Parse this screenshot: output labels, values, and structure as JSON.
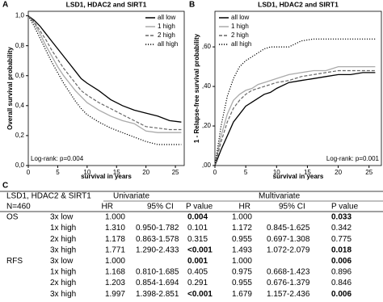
{
  "chart_data": [
    {
      "type": "line",
      "panel": "A",
      "title": "LSD1, HDAC2 and SIRT1",
      "x_label": "survival in years",
      "y_label": "Overall survival probability",
      "annotation": "Log-rank: p=0.004",
      "legend": "upper right",
      "x": [
        0,
        1,
        2,
        3,
        4,
        5,
        6,
        7,
        8,
        9,
        10,
        12,
        14,
        16,
        18,
        20,
        22,
        24,
        26
      ],
      "series": [
        {
          "name": "all low",
          "color": "#000000",
          "dash": "solid",
          "values": [
            1.0,
            0.97,
            0.93,
            0.88,
            0.83,
            0.78,
            0.73,
            0.68,
            0.63,
            0.58,
            0.55,
            0.5,
            0.44,
            0.4,
            0.37,
            0.35,
            0.33,
            0.3,
            0.29
          ]
        },
        {
          "name": "1 high",
          "color": "#aaaaaa",
          "dash": "solid",
          "values": [
            1.0,
            0.95,
            0.88,
            0.8,
            0.73,
            0.66,
            0.6,
            0.55,
            0.5,
            0.46,
            0.42,
            0.37,
            0.33,
            0.3,
            0.28,
            0.23,
            0.22,
            0.22,
            0.22
          ]
        },
        {
          "name": "2 high",
          "color": "#666666",
          "dash": "dashed",
          "values": [
            1.0,
            0.96,
            0.9,
            0.84,
            0.77,
            0.71,
            0.65,
            0.6,
            0.55,
            0.5,
            0.47,
            0.42,
            0.38,
            0.34,
            0.3,
            0.26,
            0.25,
            0.24,
            0.24
          ]
        },
        {
          "name": "all high",
          "color": "#000000",
          "dash": "dotted",
          "values": [
            1.0,
            0.93,
            0.85,
            0.77,
            0.69,
            0.62,
            0.55,
            0.49,
            0.43,
            0.38,
            0.34,
            0.29,
            0.25,
            0.22,
            0.19,
            0.16,
            0.14,
            0.14,
            0.14
          ]
        }
      ],
      "xlim": [
        0,
        26.5
      ],
      "xticks": [
        0,
        5,
        10,
        15,
        20,
        25
      ],
      "ylim": [
        0,
        1.03
      ],
      "yticks": [
        {
          "value": 0,
          "label": "0,0"
        },
        {
          "value": 0.2,
          "label": "0,2"
        },
        {
          "value": 0.4,
          "label": "0,4"
        },
        {
          "value": 0.6,
          "label": "0,6"
        },
        {
          "value": 0.8,
          "label": "0,8"
        },
        {
          "value": 1.0,
          "label": "1,0"
        }
      ]
    },
    {
      "type": "line",
      "panel": "B",
      "title": "LSD1, HDAC2 and SIRT1",
      "x_label": "survival in years",
      "y_label": "1 - Relapse-free survival probability",
      "annotation": "Log-rank: p=0.001",
      "legend": "upper left",
      "x": [
        0,
        1,
        2,
        3,
        4,
        5,
        6,
        7,
        8,
        9,
        10,
        12,
        14,
        16,
        18,
        20,
        22,
        24,
        26
      ],
      "series": [
        {
          "name": "all low",
          "color": "#000000",
          "dash": "solid",
          "values": [
            0,
            0.08,
            0.15,
            0.22,
            0.26,
            0.3,
            0.32,
            0.34,
            0.36,
            0.37,
            0.39,
            0.42,
            0.43,
            0.44,
            0.45,
            0.46,
            0.46,
            0.47,
            0.47
          ]
        },
        {
          "name": "1 high",
          "color": "#aaaaaa",
          "dash": "solid",
          "values": [
            0,
            0.15,
            0.26,
            0.33,
            0.36,
            0.38,
            0.39,
            0.41,
            0.42,
            0.43,
            0.44,
            0.46,
            0.47,
            0.48,
            0.48,
            0.5,
            0.5,
            0.5,
            0.5
          ]
        },
        {
          "name": "2 high",
          "color": "#666666",
          "dash": "dashed",
          "values": [
            0,
            0.12,
            0.22,
            0.29,
            0.33,
            0.36,
            0.38,
            0.39,
            0.4,
            0.41,
            0.42,
            0.43,
            0.45,
            0.46,
            0.47,
            0.48,
            0.48,
            0.48,
            0.48
          ]
        },
        {
          "name": "all high",
          "color": "#000000",
          "dash": "dotted",
          "values": [
            0,
            0.2,
            0.35,
            0.44,
            0.5,
            0.53,
            0.55,
            0.57,
            0.59,
            0.6,
            0.6,
            0.6,
            0.63,
            0.64,
            0.64,
            0.64,
            0.64,
            0.64,
            0.64
          ]
        }
      ],
      "xlim": [
        0,
        27
      ],
      "xticks": [
        0,
        5,
        10,
        15,
        20,
        25
      ],
      "ylim": [
        0,
        0.78
      ],
      "yticks": [
        {
          "value": 0,
          "label": ",00"
        },
        {
          "value": 0.2,
          "label": ",20"
        },
        {
          "value": 0.4,
          "label": ",40"
        },
        {
          "value": 0.6,
          "label": ",60"
        }
      ]
    }
  ],
  "table": {
    "panel": "C",
    "header": [
      [
        "LSD1, HDAC2 & SIRT1",
        "Univariate",
        "Multivariate"
      ],
      [
        "N=460",
        "HR",
        "95% CI",
        "P value",
        "HR",
        "95% CI",
        "P value"
      ]
    ],
    "rows": [
      [
        "OS",
        "3x low",
        "1.000",
        "",
        "0.004",
        "1.000",
        "",
        "0.033"
      ],
      [
        null,
        "1x high",
        "1.310",
        "0.950-1.782",
        "0.101",
        "1.172",
        "0.845-1.625",
        "0.342"
      ],
      [
        null,
        "2x high",
        "1.178",
        "0.863-1.578",
        "0.315",
        "0.955",
        "0.697-1.308",
        "0.775"
      ],
      [
        null,
        "3x high",
        "1.771",
        "1.290-2.433",
        "<0.001",
        "1.493",
        "1.072-2.079",
        "0.018"
      ],
      [
        "RFS",
        "3x low",
        "1.000",
        "",
        "0.001",
        "1.000",
        "",
        "0.006"
      ],
      [
        null,
        "1x high",
        "1.168",
        "0.810-1.685",
        "0.405",
        "0.975",
        "0.668-1.423",
        "0.896"
      ],
      [
        null,
        "2x high",
        "1.203",
        "0.854-1.694",
        "0.291",
        "0.955",
        "0.676-1.379",
        "0.846"
      ],
      [
        null,
        "3x high",
        "1.997",
        "1.398-2.851",
        "<0.001",
        "1.679",
        "1.157-2.436",
        "0.006"
      ]
    ]
  }
}
